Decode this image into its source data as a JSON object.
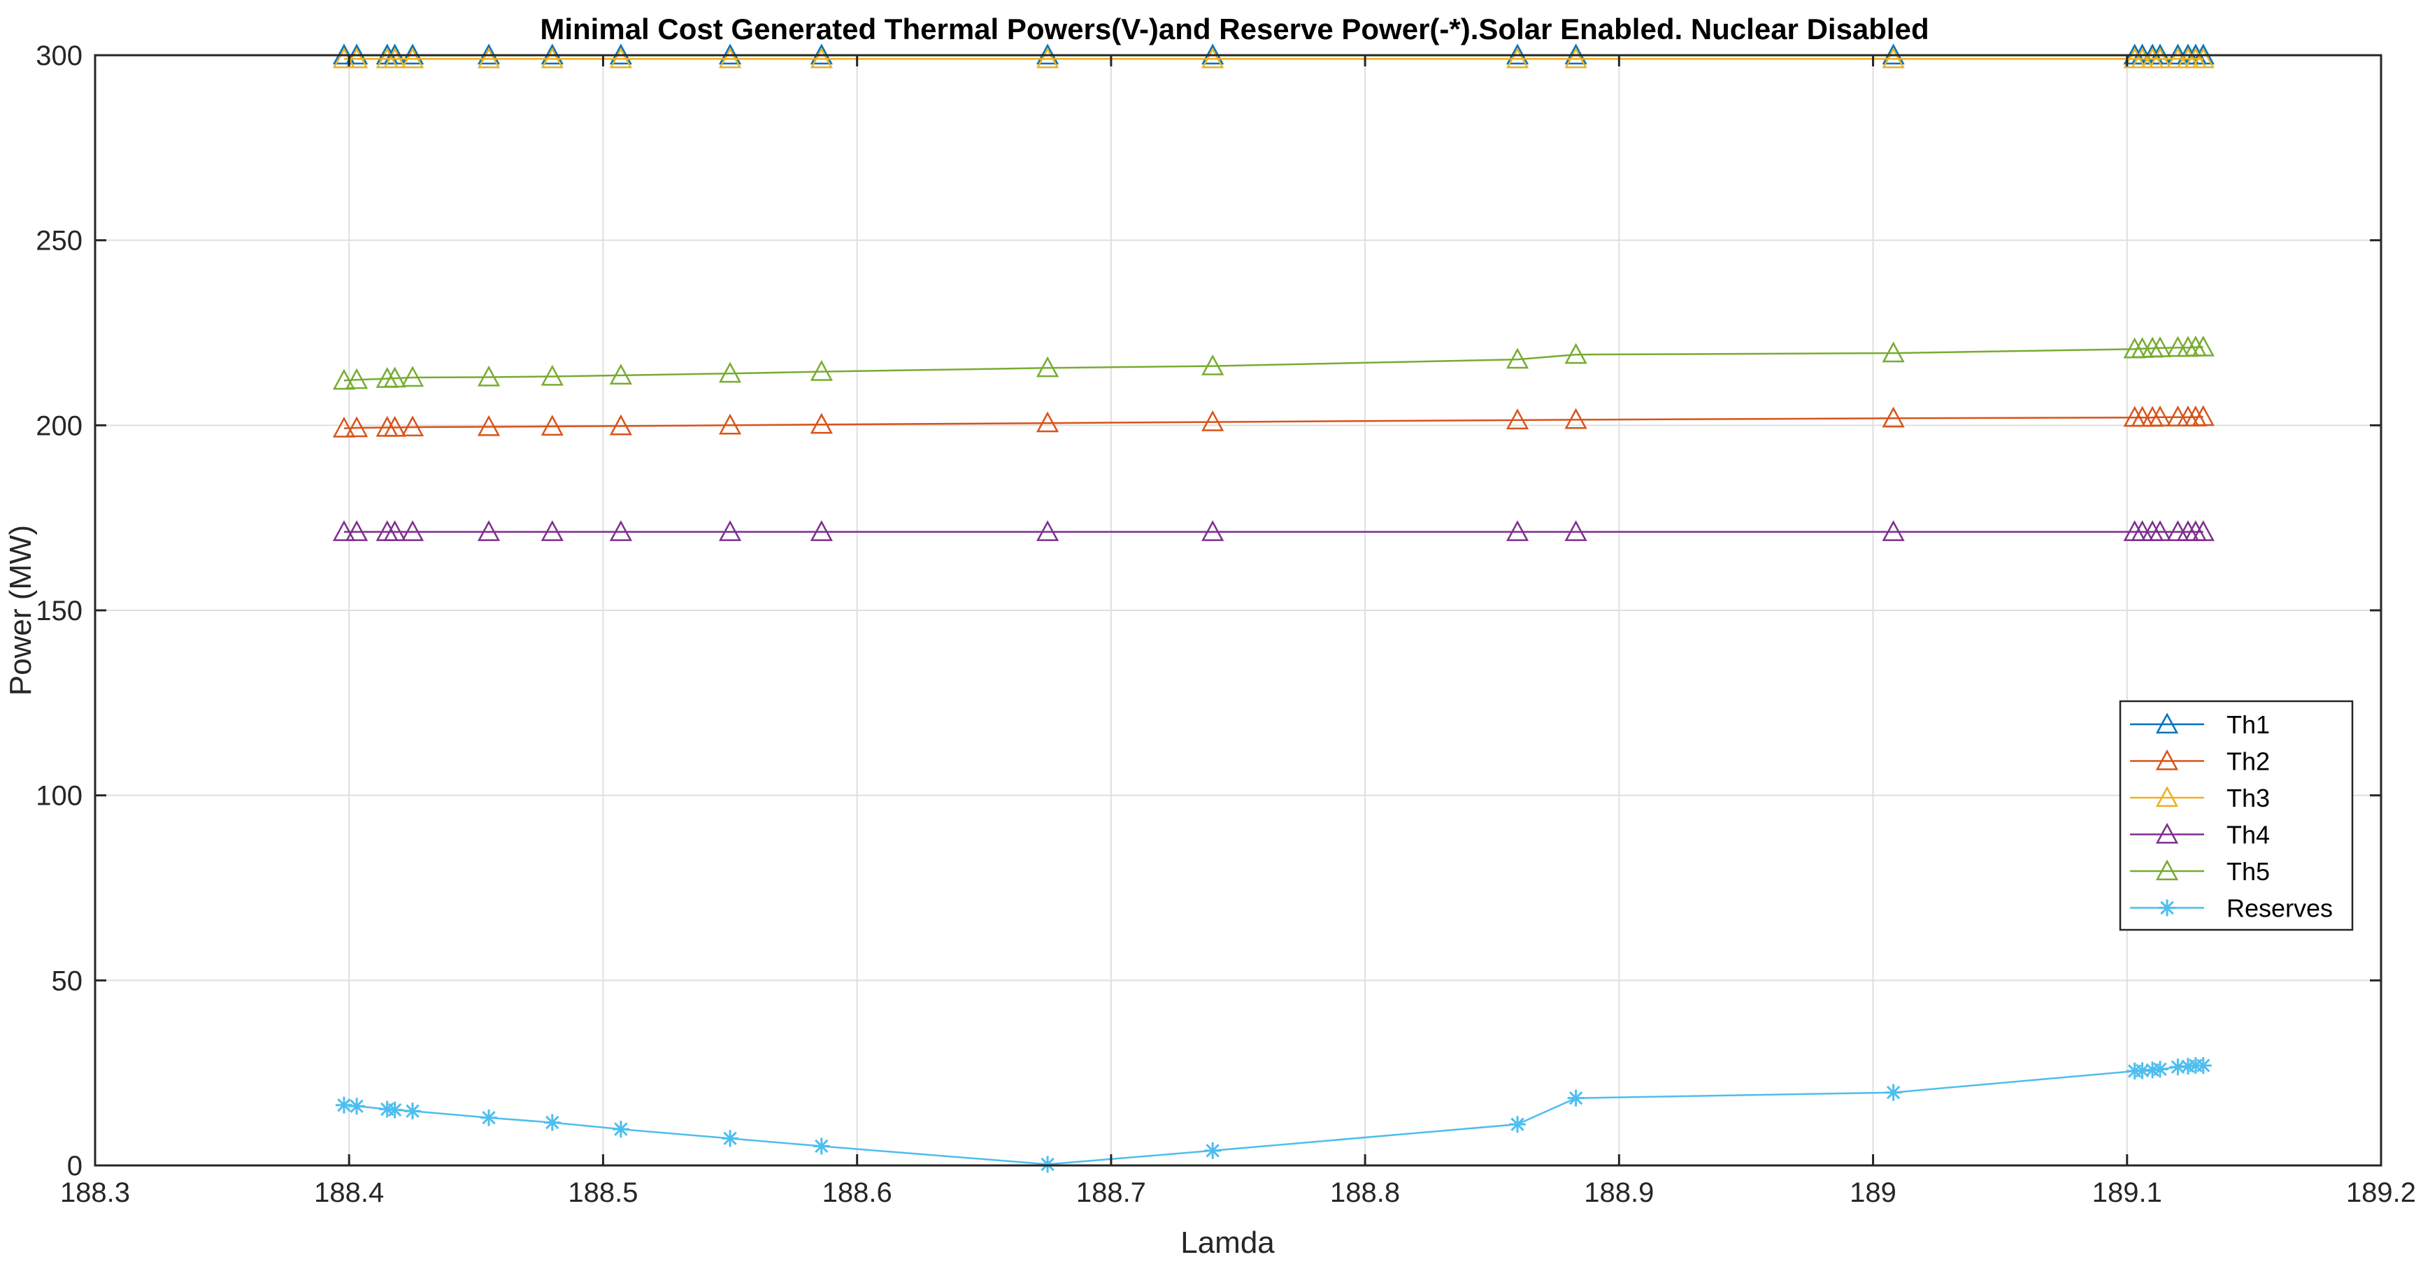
{
  "chart_data": {
    "type": "line",
    "title": "Minimal Cost Generated Thermal Powers(V-)and Reserve Power(-*).Solar Enabled. Nuclear Disabled",
    "xlabel": "Lamda",
    "ylabel": "Power (MW)",
    "xlim": [
      188.3,
      189.2
    ],
    "ylim": [
      0,
      300
    ],
    "xticks": [
      "188.3",
      "188.4",
      "188.5",
      "188.6",
      "188.7",
      "188.8",
      "188.9",
      "189",
      "189.1",
      "189.2"
    ],
    "yticks": [
      "0",
      "50",
      "100",
      "150",
      "200",
      "250",
      "300"
    ],
    "grid": true,
    "legend_position": "right-middle",
    "x": [
      188.398,
      188.403,
      188.415,
      188.418,
      188.425,
      188.455,
      188.48,
      188.507,
      188.55,
      188.586,
      188.675,
      188.74,
      188.86,
      188.883,
      189.008,
      189.103,
      189.106,
      189.11,
      189.113,
      189.12,
      189.124,
      189.127,
      189.13
    ],
    "series": [
      {
        "name": "Th1",
        "color": "#0072BD",
        "marker": "triangle",
        "values": [
          300,
          300,
          300,
          300,
          300,
          300,
          300,
          300,
          300,
          300,
          300,
          300,
          300,
          300,
          300,
          300,
          300,
          300,
          300,
          300,
          300,
          300,
          300
        ]
      },
      {
        "name": "Th2",
        "color": "#D95319",
        "marker": "triangle",
        "values": [
          199.2,
          199.3,
          199.4,
          199.4,
          199.5,
          199.6,
          199.7,
          199.8,
          200.0,
          200.2,
          200.6,
          200.9,
          201.4,
          201.5,
          201.9,
          202.1,
          202.1,
          202.1,
          202.2,
          202.2,
          202.2,
          202.2,
          202.3
        ]
      },
      {
        "name": "Th3",
        "color": "#EDB120",
        "marker": "triangle",
        "values": [
          299,
          299,
          299,
          299,
          299,
          299,
          299,
          299,
          299,
          299,
          299,
          299,
          299,
          299,
          299,
          299,
          299,
          299,
          299,
          299,
          299,
          299,
          299
        ]
      },
      {
        "name": "Th4",
        "color": "#7E2F8E",
        "marker": "triangle",
        "values": [
          171.2,
          171.2,
          171.2,
          171.2,
          171.2,
          171.2,
          171.2,
          171.2,
          171.2,
          171.2,
          171.2,
          171.2,
          171.2,
          171.2,
          171.2,
          171.2,
          171.2,
          171.2,
          171.2,
          171.2,
          171.2,
          171.2,
          171.2
        ]
      },
      {
        "name": "Th5",
        "color": "#77AC30",
        "marker": "triangle",
        "values": [
          212.1,
          212.3,
          212.6,
          212.7,
          212.9,
          213.0,
          213.2,
          213.5,
          214.0,
          214.5,
          215.5,
          216.0,
          217.8,
          219.1,
          219.5,
          220.6,
          220.7,
          220.8,
          220.9,
          221.0,
          221.0,
          221.1,
          221.1
        ]
      },
      {
        "name": "Reserves",
        "color": "#4DBEEE",
        "marker": "star",
        "values": [
          16.3,
          16.0,
          15.2,
          15.0,
          14.7,
          12.9,
          11.6,
          9.8,
          7.3,
          5.2,
          0.3,
          4.0,
          11.1,
          18.2,
          19.7,
          25.5,
          25.6,
          25.8,
          26.0,
          26.6,
          26.8,
          27.0,
          27.0
        ]
      }
    ]
  }
}
